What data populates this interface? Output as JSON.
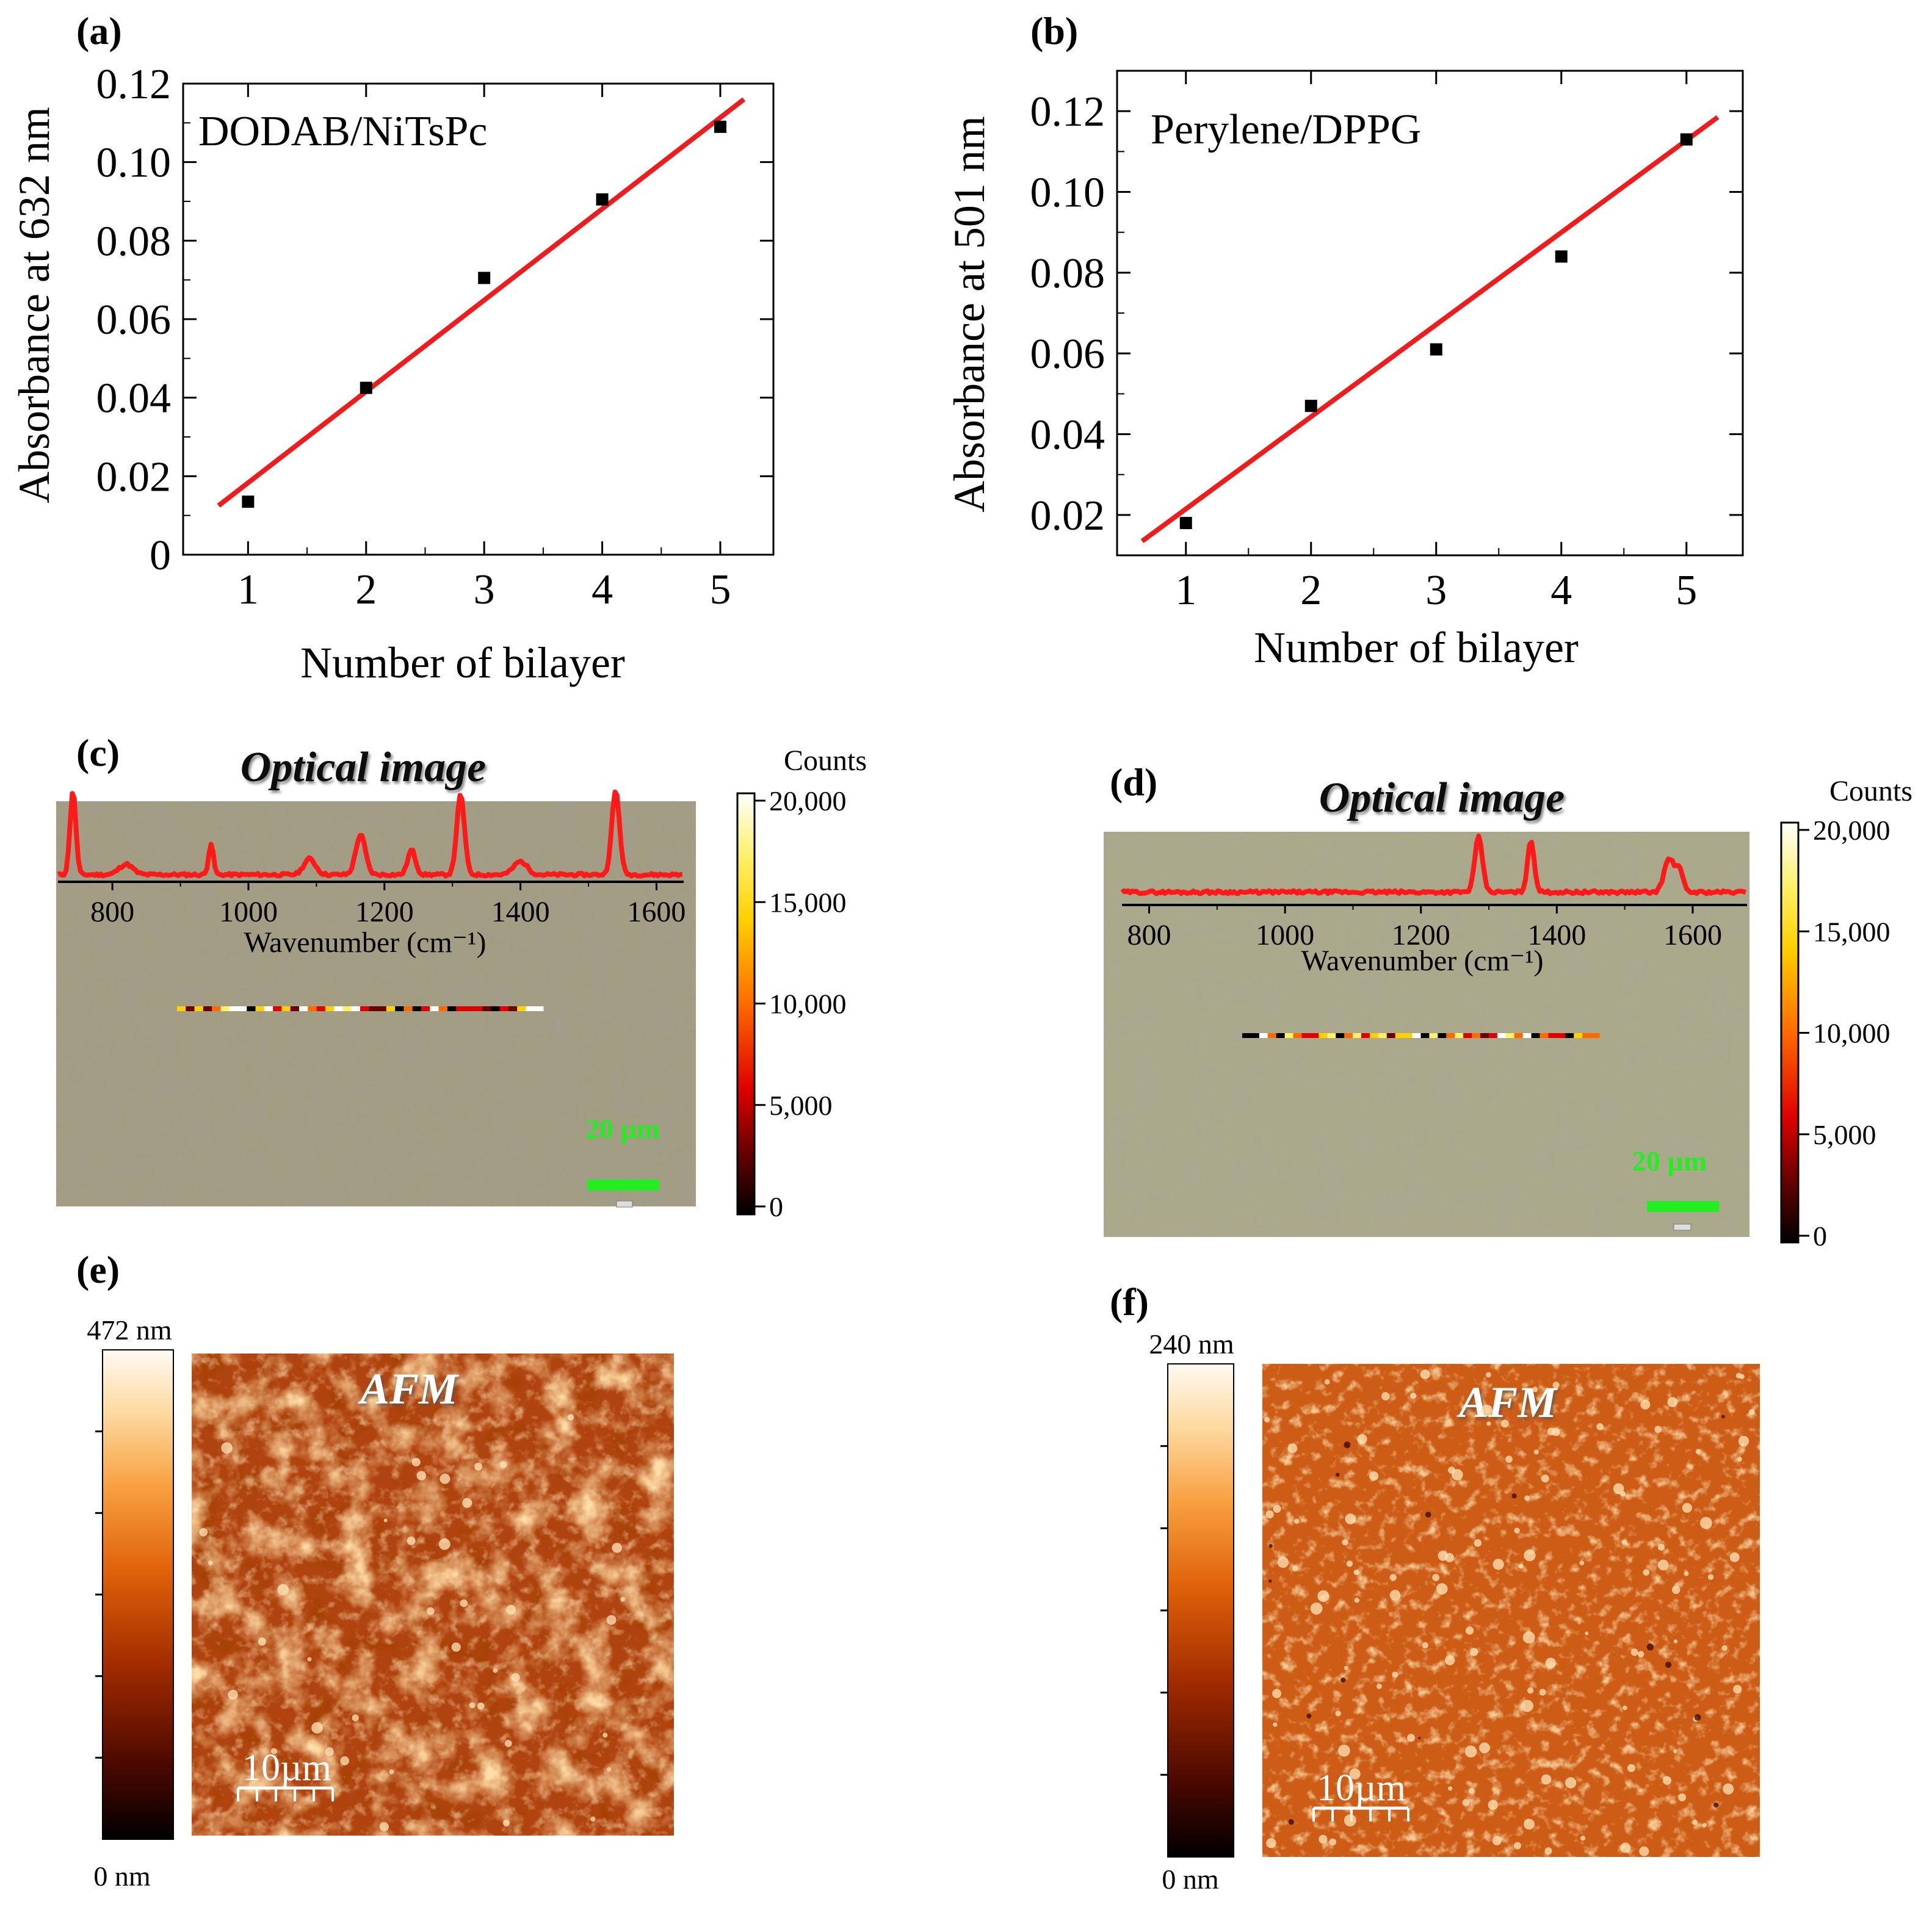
{
  "panels": {
    "a": {
      "label": "(a)"
    },
    "b": {
      "label": "(b)"
    },
    "c": {
      "label": "(c)",
      "optical_title": "Optical image",
      "scale_bar_label": "20 µm"
    },
    "d": {
      "label": "(d)",
      "optical_title": "Optical image",
      "scale_bar_label": "20 µm"
    },
    "e": {
      "label": "(e)",
      "afm_title": "AFM",
      "scale_bar_label": "10µm",
      "colorbar_max": "472 nm",
      "colorbar_min": "0 nm"
    },
    "f": {
      "label": "(f)",
      "afm_title": "AFM",
      "scale_bar_label": "10µm",
      "colorbar_max": "240 nm",
      "colorbar_min": "0 nm"
    }
  },
  "colors": {
    "fit_line": "#ee1c1c",
    "marker": "#000000",
    "spectrum": "#ff1a1a",
    "scale_bar": "#22ee22",
    "optical_bg_c": "#a09a80",
    "optical_bg_d": "#aaa98a",
    "afm_dark": "#a33a08",
    "afm_mid": "#cf661b"
  },
  "chart_data": [
    {
      "id": "a",
      "type": "scatter",
      "annotation": "DODAB/NiTsPc",
      "xlabel": "Number of bilayer",
      "ylabel": "Absorbance at 632 nm",
      "xlim": [
        0.45,
        5.45
      ],
      "ylim": [
        0,
        0.12
      ],
      "xticks": [
        "1",
        "2",
        "3",
        "4",
        "5"
      ],
      "yticks": [
        "0",
        "0.02",
        "0.04",
        "0.06",
        "0.08",
        "0.10",
        "0.12"
      ],
      "x": [
        1,
        2,
        3,
        4,
        5
      ],
      "y": [
        0.0135,
        0.0425,
        0.0705,
        0.0905,
        0.109
      ],
      "fit": {
        "x": [
          0.75,
          5.2
        ],
        "y": [
          0.0125,
          0.116
        ]
      }
    },
    {
      "id": "b",
      "type": "scatter",
      "annotation": "Perylene/DPPG",
      "xlabel": "Number of bilayer",
      "ylabel": "Absorbance at 501 nm",
      "xlim": [
        0.45,
        5.45
      ],
      "ylim": [
        0.01,
        0.13
      ],
      "xticks": [
        "1",
        "2",
        "3",
        "4",
        "5"
      ],
      "yticks": [
        "0.02",
        "0.04",
        "0.06",
        "0.08",
        "0.10",
        "0.12"
      ],
      "x": [
        1,
        2,
        3,
        4,
        5
      ],
      "y": [
        0.018,
        0.047,
        0.061,
        0.084,
        0.113
      ],
      "fit": {
        "x": [
          0.65,
          5.25
        ],
        "y": [
          0.0135,
          0.1185
        ]
      }
    },
    {
      "id": "c_spectrum",
      "type": "line",
      "xlabel": "Wavenumber (cm⁻¹)",
      "xlim": [
        720,
        1640
      ],
      "ylim": [
        0,
        1
      ],
      "xticks": [
        800,
        1000,
        1200,
        1400,
        1600
      ],
      "xtick_labels": [
        "800",
        "1000",
        "1200",
        "1400",
        "1600"
      ],
      "baseline": 0.08,
      "noise": 0.03,
      "peaks": [
        {
          "x": 742,
          "h": 0.95,
          "w": 6
        },
        {
          "x": 820,
          "h": 0.12,
          "w": 14
        },
        {
          "x": 945,
          "h": 0.35,
          "w": 5
        },
        {
          "x": 1090,
          "h": 0.18,
          "w": 12
        },
        {
          "x": 1165,
          "h": 0.45,
          "w": 10
        },
        {
          "x": 1240,
          "h": 0.28,
          "w": 8
        },
        {
          "x": 1312,
          "h": 0.9,
          "w": 8
        },
        {
          "x": 1400,
          "h": 0.15,
          "w": 14
        },
        {
          "x": 1540,
          "h": 0.95,
          "w": 8
        }
      ]
    },
    {
      "id": "d_spectrum",
      "type": "line",
      "xlabel": "Wavenumber (cm⁻¹)",
      "xlim": [
        760,
        1680
      ],
      "ylim": [
        0,
        1
      ],
      "xticks": [
        800,
        1000,
        1200,
        1400,
        1600
      ],
      "xtick_labels": [
        "800",
        "1000",
        "1200",
        "1400",
        "1600"
      ],
      "baseline": 0.15,
      "noise": 0.04,
      "peaks": [
        {
          "x": 1285,
          "h": 0.75,
          "w": 8
        },
        {
          "x": 1362,
          "h": 0.7,
          "w": 7
        },
        {
          "x": 1565,
          "h": 0.45,
          "w": 10
        },
        {
          "x": 1580,
          "h": 0.3,
          "w": 8
        }
      ]
    },
    {
      "id": "counts_colorbar_c",
      "type": "heatmap",
      "title": "Counts",
      "ticks": [
        20000,
        15000,
        10000,
        5000,
        0
      ],
      "tick_labels": [
        "20,000",
        "15,000",
        "10,000",
        "5,000",
        "0"
      ],
      "range": [
        0,
        20000
      ]
    },
    {
      "id": "counts_colorbar_d",
      "type": "heatmap",
      "title": "Counts",
      "ticks": [
        20000,
        15000,
        10000,
        5000,
        0
      ],
      "tick_labels": [
        "20,000",
        "15,000",
        "10,000",
        "5,000",
        "0"
      ],
      "range": [
        0,
        20000
      ]
    }
  ]
}
